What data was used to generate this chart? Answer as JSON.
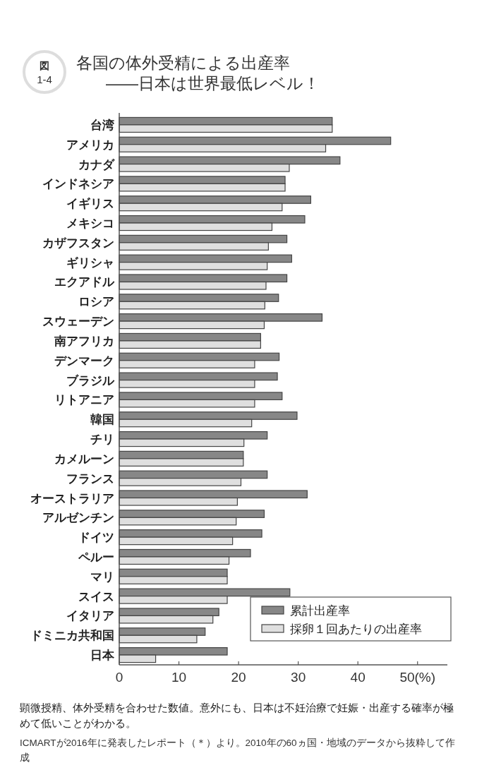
{
  "chart_data": {
    "type": "bar",
    "orientation": "horizontal",
    "title": "各国の体外受精による出産率",
    "subtitle": "——日本は世界最低レベル！",
    "categories": [
      "台湾",
      "アメリカ",
      "カナダ",
      "インドネシア",
      "イギリス",
      "メキシコ",
      "カザフスタン",
      "ギリシャ",
      "エクアドル",
      "ロシア",
      "スウェーデン",
      "南アフリカ",
      "デンマーク",
      "ブラジル",
      "リトアニア",
      "韓国",
      "チリ",
      "カメルーン",
      "フランス",
      "オーストラリア",
      "アルゼンチン",
      "ドイツ",
      "ペルー",
      "マリ",
      "スイス",
      "イタリア",
      "ドミニカ共和国",
      "日本"
    ],
    "series": [
      {
        "name": "累計出産率",
        "color": "#878787",
        "values": [
          35.7,
          45.5,
          37.0,
          27.8,
          32.1,
          31.1,
          28.1,
          28.9,
          28.1,
          26.7,
          34.0,
          23.7,
          26.8,
          26.5,
          27.3,
          29.8,
          24.8,
          20.8,
          24.8,
          31.5,
          24.3,
          23.9,
          22.0,
          18.1,
          28.6,
          16.7,
          14.4,
          18.1
        ]
      },
      {
        "name": "採卵１回あたりの出産率",
        "color": "#dfdfdf",
        "values": [
          35.7,
          34.6,
          28.5,
          27.8,
          27.3,
          25.6,
          25.0,
          24.8,
          24.6,
          24.4,
          24.3,
          23.7,
          22.7,
          22.7,
          22.7,
          22.2,
          20.9,
          20.8,
          20.4,
          19.8,
          19.6,
          19.0,
          18.4,
          18.1,
          18.1,
          15.7,
          13.0,
          6.1
        ]
      }
    ],
    "xlim": [
      0,
      55
    ],
    "xticks": [
      0,
      10,
      20,
      30,
      40,
      {
        "value": 50,
        "label": "50(%)"
      }
    ],
    "legend": "bottom right",
    "grid": false,
    "annotations": [
      "図",
      "1-4",
      "顕微授精、体外受精を合わせた数値。意外にも、日本は不妊治療で妊娠・出産する確率が極めて低いことがわかる。",
      "ICMARTが2016年に発表したレポート（＊）より。2010年の60ヵ国・地域のデータから抜粋して作成"
    ]
  }
}
